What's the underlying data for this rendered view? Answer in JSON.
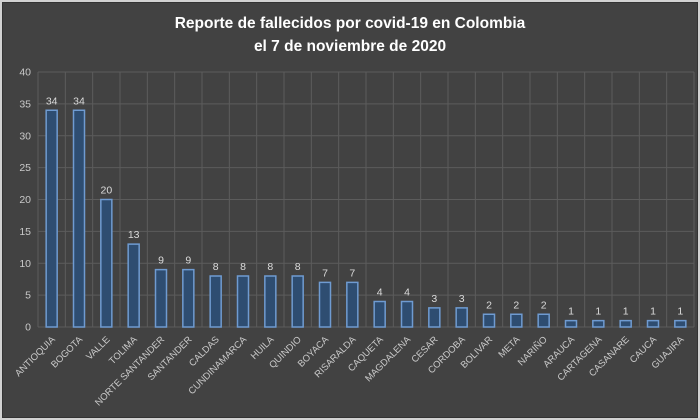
{
  "window": {
    "background": "#424242",
    "frame_border": "#d2d2d2"
  },
  "title": {
    "line1": "Reporte de fallecidos por covid-19 en Colombia",
    "line2": "el 7 de noviembre de 2020",
    "color": "#ffffff"
  },
  "chart_data": {
    "type": "bar",
    "title": "Reporte de fallecidos por covid-19 en Colombia el 7 de noviembre de 2020",
    "categories": [
      "ANTIOQUIA",
      "BOGOTA",
      "VALLE",
      "TOLIMA",
      "NORTE SANTANDER",
      "SANTANDER",
      "CALDAS",
      "CUNDINAMARCA",
      "HUILA",
      "QUINDIO",
      "BOYACA",
      "RISARALDA",
      "CAQUETA",
      "MAGDALENA",
      "CESAR",
      "CORDOBA",
      "BOLIVAR",
      "META",
      "NARIÑO",
      "ARAUCA",
      "CARTAGENA",
      "CASANARE",
      "CAUCA",
      "GUAJIRA"
    ],
    "values": [
      34,
      34,
      20,
      13,
      9,
      9,
      8,
      8,
      8,
      8,
      7,
      7,
      4,
      4,
      3,
      3,
      2,
      2,
      2,
      1,
      1,
      1,
      1,
      1
    ],
    "xlabel": "",
    "ylabel": "",
    "ylim": [
      0,
      40
    ],
    "yticks": [
      0,
      5,
      10,
      15,
      20,
      25,
      30,
      35,
      40
    ],
    "grid": "both",
    "legend": "none",
    "data_labels": true,
    "colors": {
      "bar_fill": "#2e4d71",
      "bar_border": "#6f9bd1",
      "gridline": "#5c5c5c",
      "axis_text": "#c9c9c9",
      "data_label": "#dbdbdb"
    }
  }
}
